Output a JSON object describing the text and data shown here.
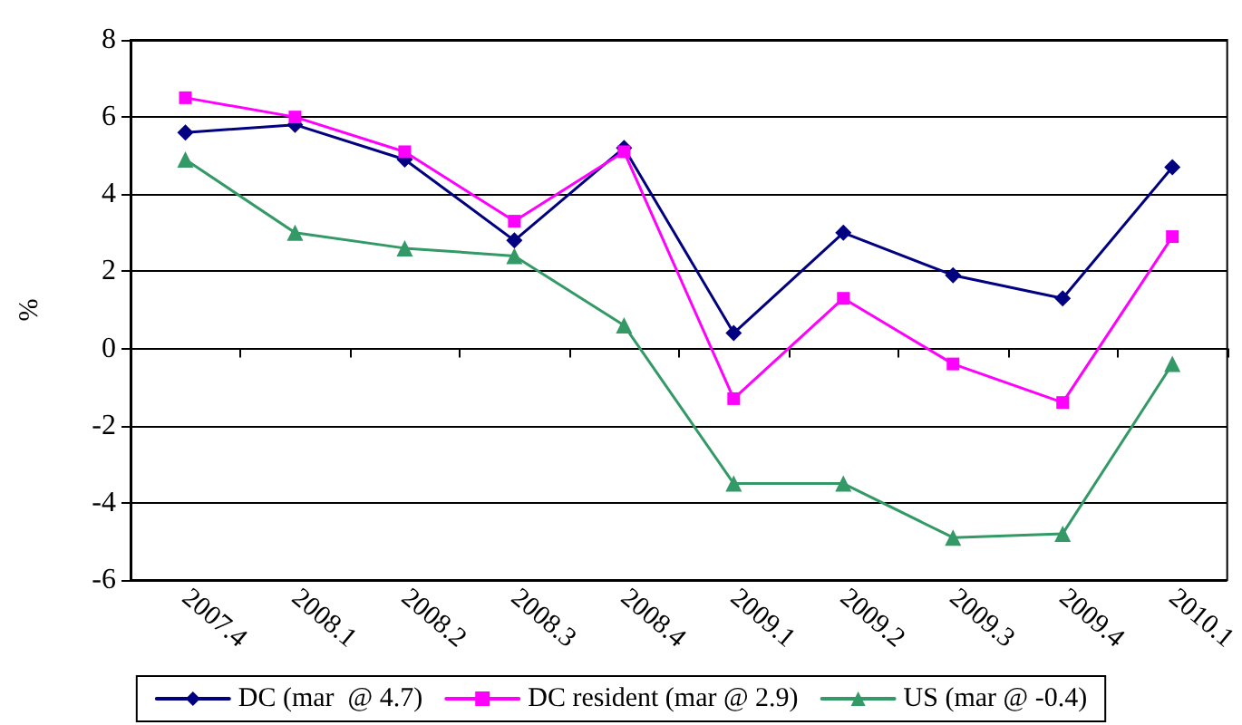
{
  "chart_data": {
    "type": "line",
    "ylabel": "%",
    "categories": [
      "2007.4",
      "2008.1",
      "2008.2",
      "2008.3",
      "2008.4",
      "2009.1",
      "2009.2",
      "2009.3",
      "2009.4",
      "2010.1"
    ],
    "series": [
      {
        "name": "DC (mar  @ 4.7)",
        "color": "#000080",
        "marker": "diamond",
        "values": [
          5.6,
          5.8,
          4.9,
          2.8,
          5.2,
          0.4,
          3.0,
          1.9,
          1.3,
          4.7
        ]
      },
      {
        "name": "DC resident (mar @ 2.9)",
        "color": "#ff00ff",
        "marker": "square",
        "values": [
          6.5,
          6.0,
          5.1,
          3.3,
          5.1,
          -1.3,
          1.3,
          -0.4,
          -1.4,
          2.9
        ]
      },
      {
        "name": "US (mar @ -0.4)",
        "color": "#339966",
        "marker": "triangle",
        "values": [
          4.9,
          3.0,
          2.6,
          2.4,
          0.6,
          -3.5,
          -3.5,
          -4.9,
          -4.8,
          -0.4
        ]
      }
    ],
    "ylim": [
      -6,
      8
    ],
    "yticks": [
      -6,
      -4,
      -2,
      0,
      2,
      4,
      6,
      8
    ],
    "grid": "y",
    "legend": "bottom"
  }
}
